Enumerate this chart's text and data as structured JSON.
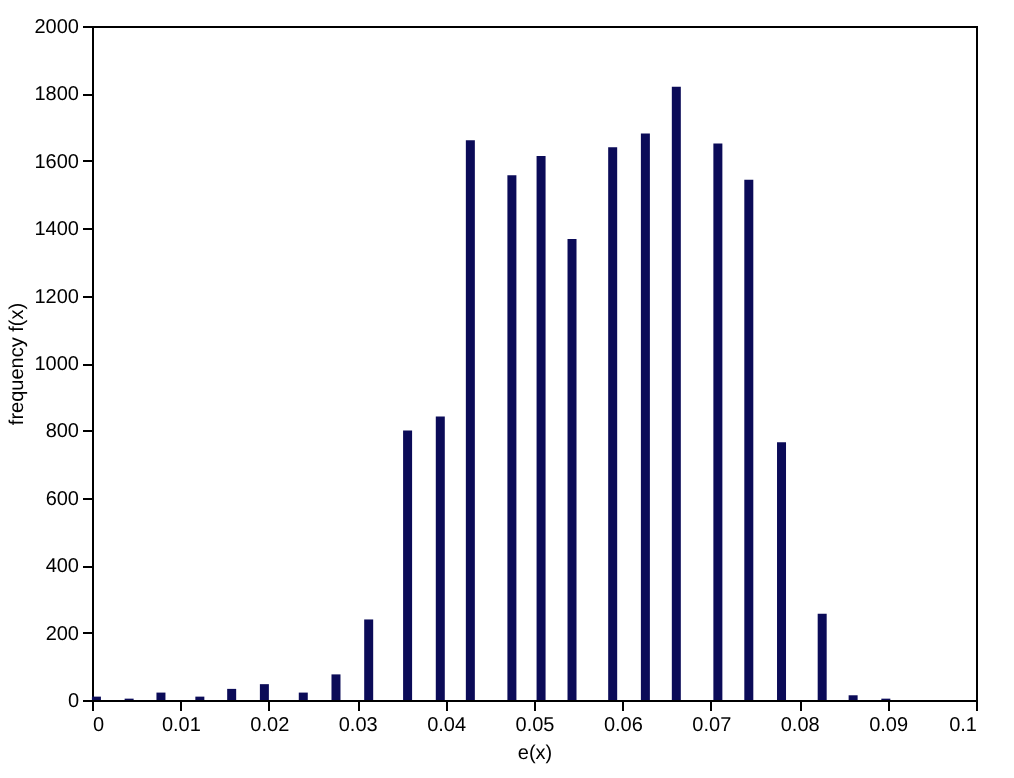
{
  "chart_data": {
    "type": "bar",
    "xlabel": "e(x)",
    "ylabel": "frequency f(x)",
    "x": [
      0.0005,
      0.0042,
      0.0078,
      0.0122,
      0.0158,
      0.0195,
      0.0239,
      0.0276,
      0.0313,
      0.0357,
      0.0394,
      0.0428,
      0.0475,
      0.0508,
      0.0543,
      0.0589,
      0.0626,
      0.0661,
      0.0708,
      0.0743,
      0.078,
      0.0826,
      0.0861,
      0.0898
    ],
    "series": [
      {
        "color": "#0b0b58",
        "values": [
          10,
          4,
          22,
          10,
          33,
          47,
          22,
          76,
          239,
          800,
          841,
          1661,
          1557,
          1614,
          1368,
          1640,
          1681,
          1820,
          1651,
          1544,
          765,
          256,
          14,
          4
        ]
      }
    ],
    "xlim": [
      0,
      0.1
    ],
    "xticks": [
      0,
      0.01,
      0.02,
      0.03,
      0.04,
      0.05,
      0.06,
      0.07,
      0.08,
      0.09,
      0.1
    ],
    "ylim": [
      0,
      2000
    ],
    "yticks": [
      0,
      200,
      400,
      600,
      800,
      1000,
      1200,
      1400,
      1600,
      1800,
      2000
    ],
    "grid": false
  }
}
